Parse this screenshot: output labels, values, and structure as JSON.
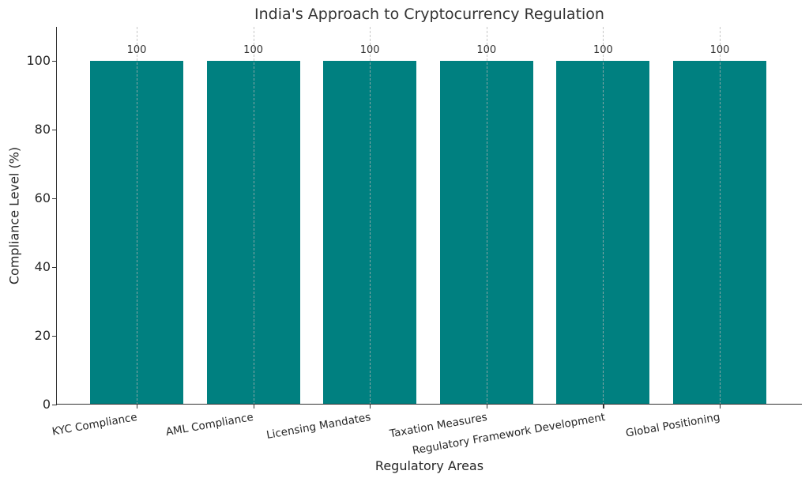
{
  "chart_data": {
    "type": "bar",
    "title": "India's Approach to Cryptocurrency Regulation",
    "xlabel": "Regulatory Areas",
    "ylabel": "Compliance Level (%)",
    "categories": [
      "KYC Compliance",
      "AML Compliance",
      "Licensing Mandates",
      "Taxation Measures",
      "Regulatory Framework Development",
      "Global Positioning"
    ],
    "values": [
      100,
      100,
      100,
      100,
      100,
      100
    ],
    "data_labels": [
      "100",
      "100",
      "100",
      "100",
      "100",
      "100"
    ],
    "ylim": [
      0,
      110
    ],
    "yticks": [
      "0",
      "20",
      "40",
      "60",
      "80",
      "100"
    ],
    "grid": "x-axis dashed vertical lines",
    "bar_color": "#008080",
    "legend": null
  }
}
